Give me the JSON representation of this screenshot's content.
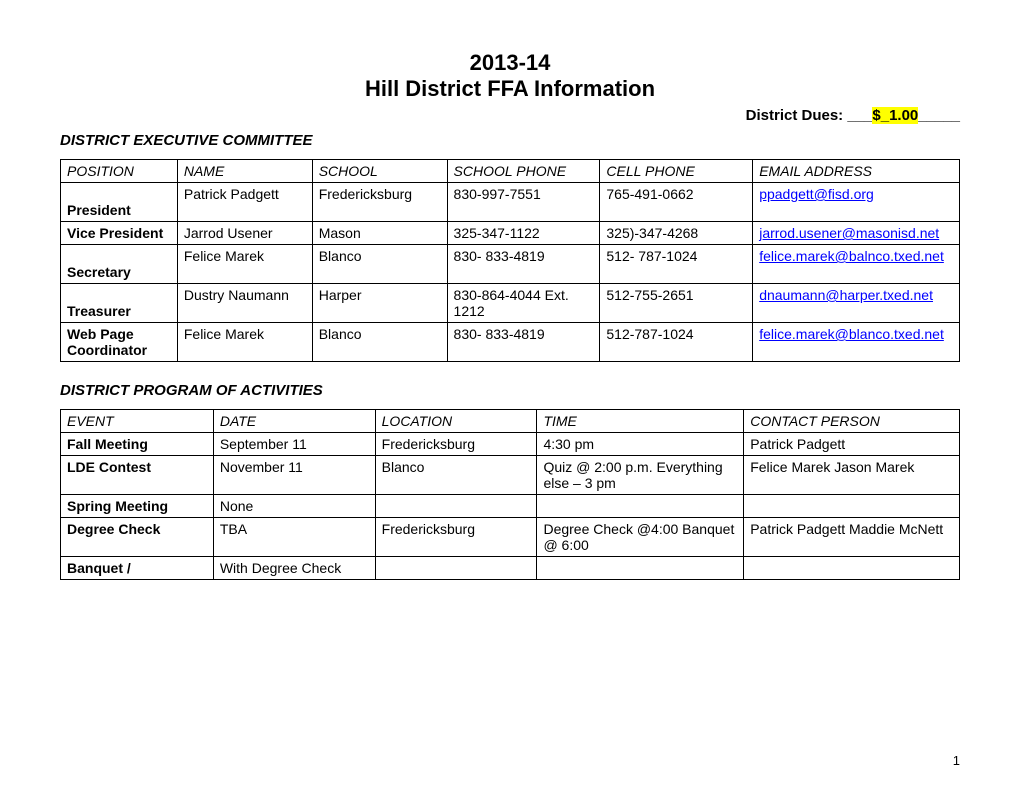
{
  "title_year": "2013-14",
  "title_sub": "Hill District FFA Information",
  "dues_label": "District Dues: ",
  "dues_pre": "___",
  "dues_value": "$_1.00",
  "dues_post": "_____",
  "section1": "DISTRICT EXECUTIVE COMMITTEE",
  "committee_headers": {
    "position": "POSITION",
    "name": "NAME",
    "school": "SCHOOL",
    "school_phone": "SCHOOL PHONE",
    "cell_phone": "CELL PHONE",
    "email": "EMAIL ADDRESS"
  },
  "committee": [
    {
      "position": "President",
      "name": "Patrick Padgett",
      "school": "Fredericksburg",
      "school_phone": "830-997-7551",
      "cell_phone": "765-491-0662",
      "email": "ppadgett@fisd.org"
    },
    {
      "position": "Vice President",
      "name": "Jarrod Usener",
      "school": "Mason",
      "school_phone": "325-347-1122",
      "cell_phone": "325)-347-4268",
      "email": "jarrod.usener@masonisd.net"
    },
    {
      "position": "Secretary",
      "name": "Felice Marek",
      "school": "Blanco",
      "school_phone": "830- 833-4819",
      "cell_phone": "512- 787-1024",
      "email": "felice.marek@balnco.txed.net"
    },
    {
      "position": "Treasurer",
      "name": "Dustry Naumann",
      "school": "Harper",
      "school_phone": "830-864-4044 Ext. 1212",
      "cell_phone": "512-755-2651",
      "email": "dnaumann@harper.txed.net"
    },
    {
      "position": "Web Page Coordinator",
      "name": "Felice Marek",
      "school": " Blanco",
      "school_phone": "830- 833-4819",
      "cell_phone": "512-787-1024",
      "email": "felice.marek@blanco.txed.net"
    }
  ],
  "section2": "DISTRICT PROGRAM OF ACTIVITIES",
  "activities_headers": {
    "event": "EVENT",
    "date": "DATE",
    "location": "LOCATION",
    "time": "TIME",
    "contact": "CONTACT PERSON"
  },
  "activities": [
    {
      "event": "Fall Meeting",
      "date": "September 11",
      "location": "Fredericksburg",
      "time": "4:30 pm",
      "contact": "Patrick Padgett"
    },
    {
      "event": "LDE Contest",
      "date": "November 11",
      "location": "Blanco",
      "time": "Quiz @ 2:00 p.m. Everything else – 3 pm",
      "contact": "Felice Marek Jason Marek"
    },
    {
      "event": "Spring Meeting",
      "date": "None",
      "location": "",
      "time": "",
      "contact": ""
    },
    {
      "event": "Degree Check",
      "date": "TBA",
      "location": "Fredericksburg",
      "time": "Degree Check @4:00 Banquet @ 6:00",
      "contact": "Patrick Padgett Maddie McNett"
    },
    {
      "event": "Banquet /",
      "date": "With Degree Check",
      "location": "",
      "time": "",
      "contact": ""
    }
  ],
  "col_widths_committee": [
    "13%",
    "15%",
    "15%",
    "17%",
    "17%",
    "23%"
  ],
  "col_widths_activities": [
    "17%",
    "18%",
    "18%",
    "23%",
    "24%"
  ],
  "page_number": "1"
}
